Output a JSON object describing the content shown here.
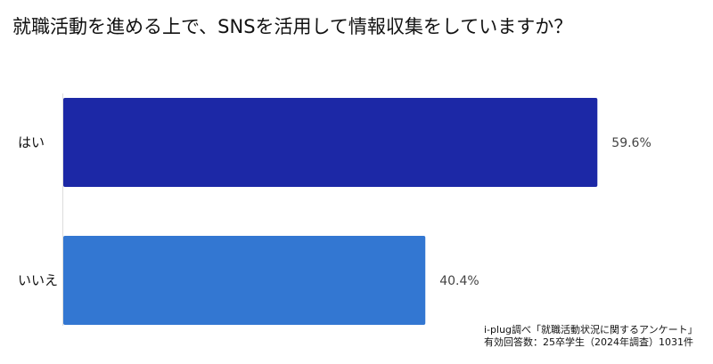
{
  "chart_data": {
    "type": "bar",
    "orientation": "horizontal",
    "title": "就職活動を進める上で、SNSを活用して情報収集をしていますか？",
    "categories": [
      "はい",
      "いいえ"
    ],
    "values": [
      59.6,
      40.4
    ],
    "value_labels": [
      "59.6%",
      "40.4%"
    ],
    "unit": "%",
    "colors": [
      "#1c28a6",
      "#3377d2"
    ],
    "xlim": [
      0,
      72.5
    ],
    "grid": false,
    "legend": "none"
  },
  "source": {
    "line1": "i-plug調べ「就職活動状況に関するアンケート」",
    "line2": "有効回答数：25卒学生（2024年調査）1031件"
  }
}
